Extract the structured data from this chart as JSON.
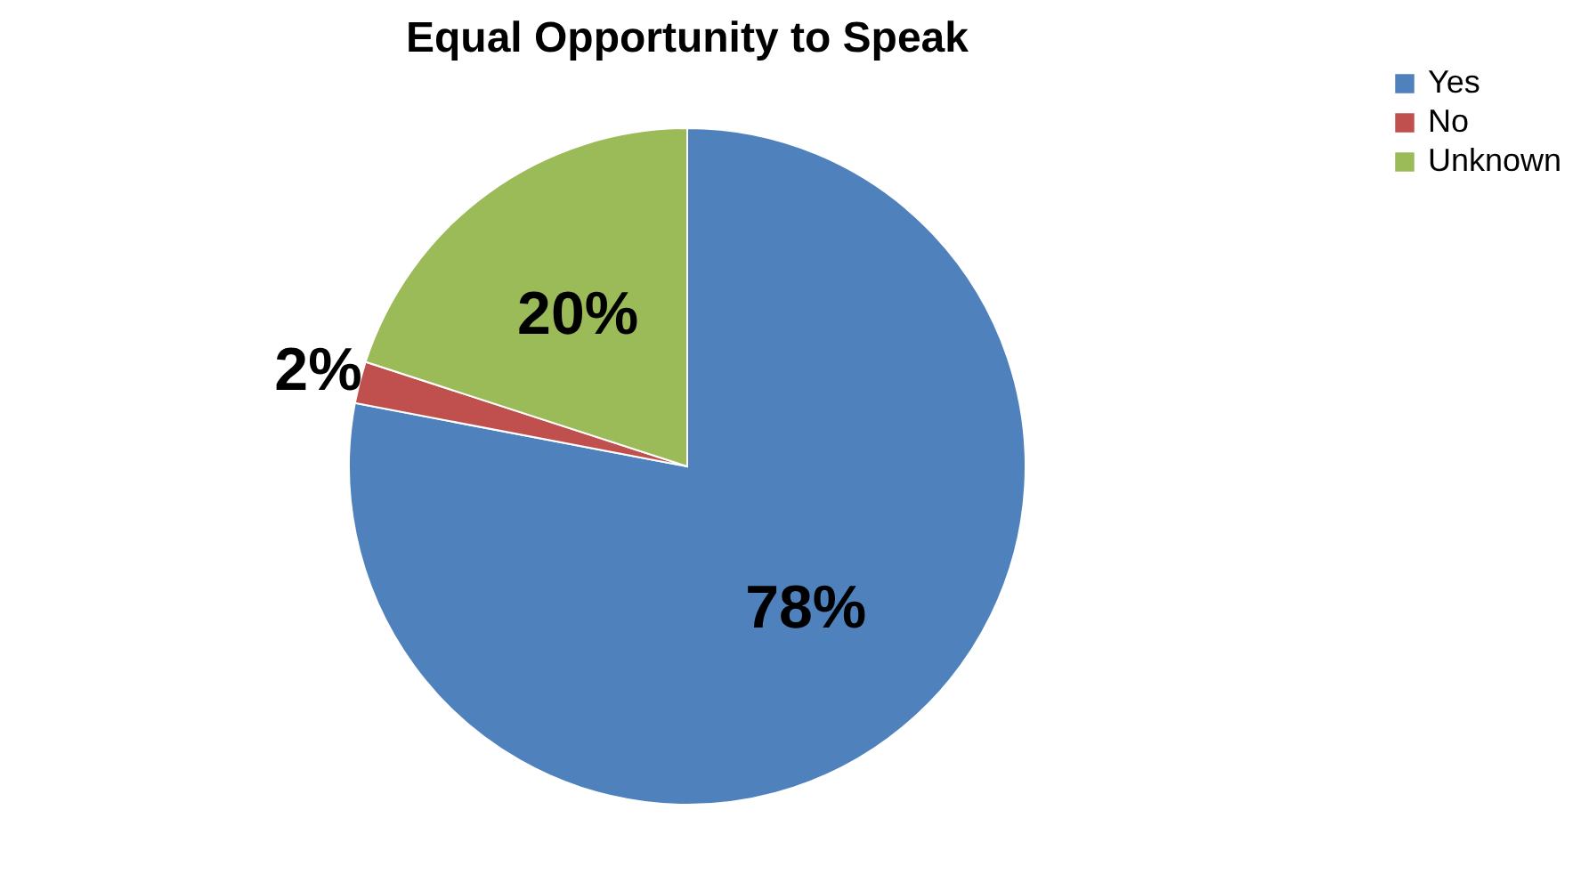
{
  "chart_data": {
    "type": "pie",
    "title": "Equal Opportunity to Speak",
    "categories": [
      "Yes",
      "No",
      "Unknown"
    ],
    "values": [
      78,
      2,
      20
    ],
    "colors": [
      "#4f81bd",
      "#c0504d",
      "#9bbb59"
    ],
    "value_labels": [
      "78%",
      "2%",
      "20%"
    ],
    "legend": "right"
  }
}
